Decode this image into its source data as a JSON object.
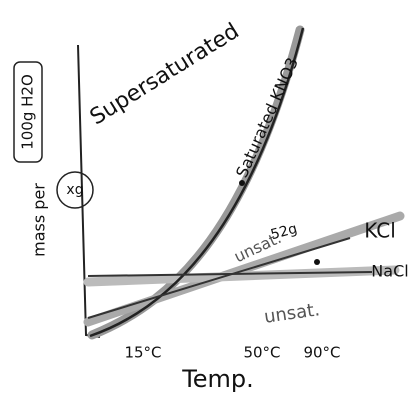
{
  "region_label": "Supersaturated",
  "y_axis": {
    "label": "mass per",
    "boxed_label": "100g H2O",
    "circled_label": "xg"
  },
  "x_axis": {
    "label": "Temp.",
    "ticks": [
      "15°C",
      "50°C",
      "90°C"
    ]
  },
  "curves": [
    {
      "label": "Saturated KNO3"
    },
    {
      "label": "KCl",
      "annotation": "52g",
      "region_label": "unsat."
    },
    {
      "label": "NaCl",
      "region_label": "unsat."
    }
  ]
}
